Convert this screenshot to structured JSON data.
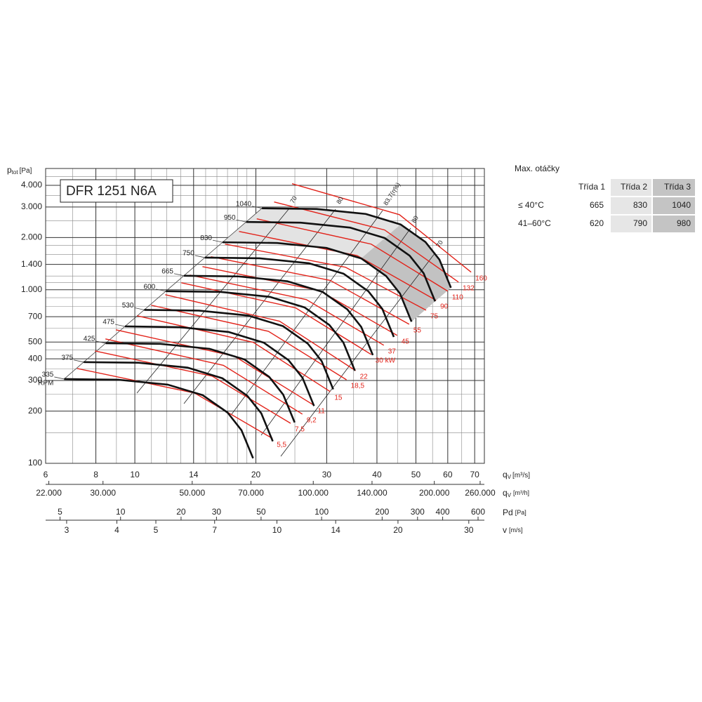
{
  "chart_data": {
    "type": "fan-curve",
    "title": "DFR 1251 N6A",
    "ylabel": {
      "symbol": "p",
      "sub": "tot",
      "unit": "[Pa]"
    },
    "xlabel": {
      "symbol": "q",
      "sub": "V",
      "unit": "[m³/s]"
    },
    "log_x": true,
    "log_y": true,
    "grid": true,
    "xlim": [
      6,
      74
    ],
    "ylim": [
      100,
      5000
    ],
    "xticks": [
      6,
      8,
      10,
      14,
      20,
      30,
      40,
      50,
      60,
      70
    ],
    "xminor": [
      7,
      9,
      11,
      12,
      13,
      15,
      16,
      17,
      18,
      19,
      25,
      35,
      45,
      55,
      65
    ],
    "yticks": [
      100,
      200,
      300,
      400,
      500,
      700,
      {
        "value": 1000,
        "label": "1.000"
      },
      {
        "value": 1400,
        "label": "1.400"
      },
      {
        "value": 2000,
        "label": "2.000"
      },
      {
        "value": 3000,
        "label": "3.000"
      },
      {
        "value": 4000,
        "label": "4.000"
      }
    ],
    "yminor": [
      150,
      250,
      350,
      450,
      600,
      800,
      900,
      1100,
      1200,
      1600,
      1800,
      2500,
      3500,
      4500
    ],
    "speed_unit": "RPM",
    "series": [
      {
        "name": "335",
        "color": "#111111",
        "x": [
          6.67,
          9.12,
          12.08,
          14.75,
          17.01,
          18.42,
          19.68
        ],
        "values": [
          306,
          303,
          284,
          247,
          196,
          155,
          107
        ]
      },
      {
        "name": "375",
        "color": "#111111",
        "x": [
          7.46,
          10.21,
          13.52,
          16.52,
          19.04,
          20.63,
          22.03
        ],
        "values": [
          383,
          380,
          356,
          309,
          245,
          194,
          134
        ]
      },
      {
        "name": "425",
        "color": "#111111",
        "x": [
          8.46,
          11.57,
          15.33,
          18.72,
          21.58,
          23.38,
          24.97
        ],
        "values": [
          492,
          488,
          457,
          397,
          315,
          249,
          172
        ]
      },
      {
        "name": "475",
        "color": "#111111",
        "x": [
          9.45,
          12.92,
          17.13,
          20.92,
          24.11,
          26.12,
          27.9
        ],
        "values": [
          615,
          609,
          571,
          496,
          393,
          311,
          214
        ]
      },
      {
        "name": "530",
        "color": "#111111",
        "x": [
          10.55,
          14.42,
          19.11,
          23.34,
          26.91,
          29.15,
          31.14
        ],
        "values": [
          766,
          759,
          711,
          618,
          490,
          388,
          267
        ]
      },
      {
        "name": "600",
        "color": "#111111",
        "x": [
          11.94,
          16.33,
          21.63,
          26.42,
          30.46,
          33.0,
          35.25
        ],
        "values": [
          981,
          972,
          911,
          792,
          627,
          497,
          342
        ]
      },
      {
        "name": "665",
        "color": "#111111",
        "x": [
          13.24,
          18.1,
          23.98,
          29.28,
          33.76,
          36.57,
          39.07
        ],
        "values": [
          1205,
          1194,
          1119,
          973,
          771,
          610,
          420
        ]
      },
      {
        "name": "750",
        "color": "#111111",
        "x": [
          14.93,
          20.41,
          27.05,
          33.03,
          38.08,
          41.25,
          44.06
        ],
        "values": [
          1533,
          1519,
          1423,
          1238,
          980,
          776,
          535
        ]
      },
      {
        "name": "830",
        "color": "#111111",
        "x": [
          16.52,
          22.59,
          29.93,
          36.55,
          42.14,
          45.65,
          48.76
        ],
        "values": [
          1878,
          1860,
          1743,
          1516,
          1201,
          951,
          655
        ]
      },
      {
        "name": "950",
        "color": "#111111",
        "x": [
          18.91,
          25.85,
          34.26,
          41.84,
          48.23,
          52.25,
          55.81
        ],
        "values": [
          2460,
          2437,
          2283,
          1986,
          1573,
          1246,
          858
        ]
      },
      {
        "name": "1040",
        "color": "#111111",
        "x": [
          20.7,
          28.3,
          37.5,
          45.8,
          52.8,
          57.2,
          61.1
        ],
        "values": [
          2948,
          2921,
          2736,
          2380,
          1885,
          1493,
          1028
        ]
      }
    ],
    "power_curves": [
      {
        "name": "5,5",
        "color": "#e2231a",
        "x": [
          7.19,
          14.08,
          22.0
        ],
        "values": [
          352,
          254,
          139
        ]
      },
      {
        "name": "7,5",
        "color": "#e2231a",
        "x": [
          7.96,
          15.57,
          24.4
        ],
        "values": [
          444,
          318,
          170
        ]
      },
      {
        "name": "9,2",
        "color": "#e2231a",
        "x": [
          8.45,
          16.6,
          26.1
        ],
        "values": [
          521,
          367,
          192
        ]
      },
      {
        "name": "11",
        "color": "#e2231a",
        "x": [
          8.97,
          17.7,
          27.8
        ],
        "values": [
          588,
          414,
          217
        ]
      },
      {
        "name": "15",
        "color": "#e2231a",
        "x": [
          10.13,
          19.7,
          30.6
        ],
        "values": [
          708,
          498,
          259
        ]
      },
      {
        "name": "18,5",
        "color": "#e2231a",
        "x": [
          10.98,
          21.5,
          33.6
        ],
        "values": [
          815,
          576,
          303
        ]
      },
      {
        "name": "22",
        "color": "#e2231a",
        "x": [
          11.9,
          22.9,
          35.4
        ],
        "values": [
          937,
          659,
          342
        ]
      },
      {
        "name": "30 kW",
        "color": "#e2231a",
        "x": [
          13.05,
          25.1,
          38.7
        ],
        "values": [
          1098,
          787,
          424
        ]
      },
      {
        "name": "37",
        "color": "#e2231a",
        "x": [
          13.7,
          26.7,
          41.6
        ],
        "values": [
          1216,
          878,
          479
        ]
      },
      {
        "name": "45",
        "color": "#e2231a",
        "x": [
          14.73,
          28.8,
          44.9
        ],
        "values": [
          1360,
          988,
          546
        ]
      },
      {
        "name": "55",
        "color": "#e2231a",
        "x": [
          15.46,
          30.6,
          48.1
        ],
        "values": [
          1550,
          1133,
          633
        ]
      },
      {
        "name": "75",
        "color": "#e2231a",
        "x": [
          16.76,
          33.4,
          53.0
        ],
        "values": [
          1833,
          1349,
          763
        ]
      },
      {
        "name": "90",
        "color": "#e2231a",
        "x": [
          18.16,
          35.7,
          56.1
        ],
        "values": [
          2168,
          1575,
          870
        ]
      },
      {
        "name": "110",
        "color": "#e2231a",
        "x": [
          20.1,
          38.7,
          60.0
        ],
        "values": [
          2564,
          1833,
          982
        ]
      },
      {
        "name": "132",
        "color": "#e2231a",
        "x": [
          22.2,
          41.8,
          63.8
        ],
        "values": [
          3207,
          2211,
          1108
        ]
      },
      {
        "name": "160",
        "color": "#e2231a",
        "x": [
          24.6,
          45.5,
          68.6
        ],
        "values": [
          4087,
          2709,
          1263
        ]
      }
    ],
    "efficiency_labels": [
      "70",
      "80",
      "83,7(η%)",
      "80",
      "70"
    ],
    "secondary_axes": [
      {
        "symbol": "q",
        "sub": "V",
        "unit": "[m³/h]",
        "log": true,
        "xlim": [
          21600,
          266400
        ],
        "ticks": [
          {
            "value": 22000,
            "label": "22.000"
          },
          {
            "value": 30000,
            "label": "30.000"
          },
          {
            "value": 50000,
            "label": "50.000"
          },
          {
            "value": 70000,
            "label": "70.000"
          },
          {
            "value": 100000,
            "label": "100.000"
          },
          {
            "value": 140000,
            "label": "140.000"
          },
          {
            "value": 200000,
            "label": "200.000"
          },
          {
            "value": 260000,
            "label": "260.000"
          }
        ]
      },
      {
        "symbol": "Pd",
        "unit": "[Pa]",
        "log": true,
        "xlim": [
          4.24,
          645
        ],
        "ticks": [
          5,
          10,
          20,
          30,
          50,
          100,
          200,
          300,
          400,
          600
        ]
      },
      {
        "symbol": "v",
        "unit": "[m/s]",
        "log": true,
        "xlim": [
          2.66,
          32.8
        ],
        "ticks": [
          3,
          4,
          5,
          7,
          10,
          14,
          20,
          30
        ]
      }
    ]
  },
  "table": {
    "title": "Max. otáčky",
    "columns": [
      "Třída 1",
      "Třída 2",
      "Třída 3"
    ],
    "rows": [
      {
        "label": "≤ 40°C",
        "values": [
          665,
          830,
          1040
        ]
      },
      {
        "label": "41–60°C",
        "values": [
          620,
          790,
          980
        ]
      }
    ]
  }
}
